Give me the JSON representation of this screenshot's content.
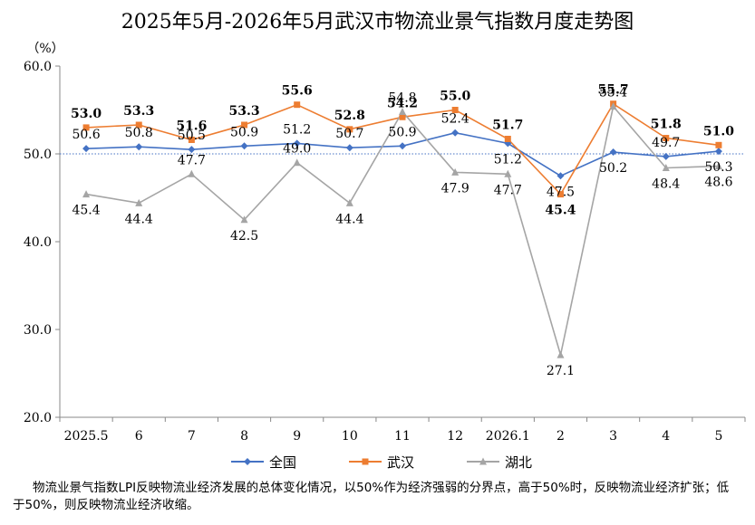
{
  "chart_data": {
    "type": "line",
    "title": "2025年5月-2026年5月武汉市物流业景气指数月度走势图",
    "ylabel": "（%）",
    "xlabel": "",
    "ylim": [
      20,
      60
    ],
    "yticks": [
      "20.0",
      "30.0",
      "40.0",
      "50.0",
      "60.0"
    ],
    "categories": [
      "2025.5",
      "6",
      "7",
      "8",
      "9",
      "10",
      "11",
      "12",
      "2026.1",
      "2",
      "3",
      "4",
      "5"
    ],
    "reference_line": 50,
    "series": [
      {
        "name": "全国",
        "color": "#4472C4",
        "marker": "diamond",
        "values": [
          50.6,
          50.8,
          50.5,
          50.9,
          51.2,
          50.7,
          50.9,
          52.4,
          51.2,
          47.5,
          50.2,
          49.7,
          50.3
        ],
        "labels": [
          "50.6",
          "50.8",
          "50.5",
          "50.9",
          "51.2",
          "50.7",
          "50.9",
          "52.4",
          "51.2",
          "47.5",
          "50.2",
          "49.7",
          "50.3"
        ]
      },
      {
        "name": "武汉",
        "color": "#ED7D31",
        "marker": "square",
        "values": [
          53.0,
          53.3,
          51.6,
          53.3,
          55.6,
          52.8,
          54.2,
          55.0,
          51.7,
          45.4,
          55.7,
          51.8,
          51.0
        ],
        "labels": [
          "53.0",
          "53.3",
          "51.6",
          "53.3",
          "55.6",
          "52.8",
          "54.2",
          "55.0",
          "51.7",
          "45.4",
          "55.7",
          "51.8",
          "51.0"
        ]
      },
      {
        "name": "湖北",
        "color": "#A5A5A5",
        "marker": "triangle",
        "values": [
          45.4,
          44.4,
          47.7,
          42.5,
          49.0,
          44.4,
          54.8,
          47.9,
          47.7,
          27.1,
          55.4,
          48.4,
          48.6
        ],
        "labels": [
          "45.4",
          "44.4",
          "47.7",
          "42.5",
          "49.0",
          "44.4",
          "54.8",
          "47.9",
          "47.7",
          "27.1",
          "55.4",
          "48.4",
          "48.6"
        ]
      }
    ],
    "legend_position": "bottom",
    "grid": false
  },
  "footnote": "物流业景气指数LPI反映物流业经济发展的总体变化情况，以50%作为经济强弱的分界点，高于50%时，反映物流业经济扩张；低于50%，则反映物流业经济收缩。"
}
